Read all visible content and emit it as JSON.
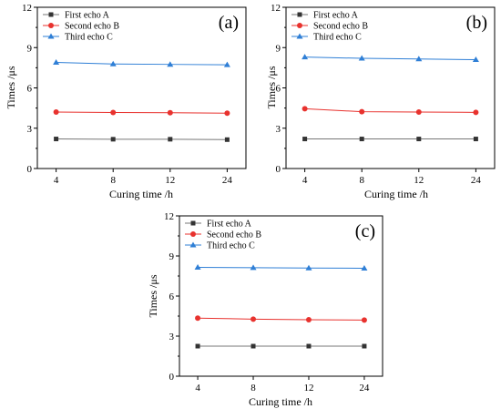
{
  "colors": {
    "series": [
      "#333333",
      "#e8322e",
      "#2f7fd6"
    ],
    "line": [
      "#777777",
      "#e8322e",
      "#2f7fd6"
    ]
  },
  "chart_data": [
    {
      "type": "line",
      "panel_label": "(a)",
      "categories": [
        "4",
        "8",
        "12",
        "24"
      ],
      "xlabel": "Curing time /h",
      "ylabel": "Times /μs",
      "ylim": [
        0,
        12
      ],
      "yticks": [
        "0",
        "3",
        "6",
        "9",
        "12"
      ],
      "legend_position": "top-left",
      "grid": false,
      "series": [
        {
          "name": "First echo A",
          "marker": "square",
          "values": [
            2.2,
            2.18,
            2.18,
            2.15
          ]
        },
        {
          "name": "Second echo B",
          "marker": "circle",
          "values": [
            4.2,
            4.17,
            4.15,
            4.12
          ]
        },
        {
          "name": "Third echo C",
          "marker": "triangle",
          "values": [
            7.9,
            7.78,
            7.75,
            7.72
          ]
        }
      ]
    },
    {
      "type": "line",
      "panel_label": "(b)",
      "categories": [
        "4",
        "8",
        "12",
        "24"
      ],
      "xlabel": "Curing time /h",
      "ylabel": "Times /μs",
      "ylim": [
        0,
        12
      ],
      "yticks": [
        "0",
        "3",
        "6",
        "9",
        "12"
      ],
      "legend_position": "top-left",
      "grid": false,
      "series": [
        {
          "name": "First echo A",
          "marker": "square",
          "values": [
            2.2,
            2.2,
            2.2,
            2.2
          ]
        },
        {
          "name": "Second echo B",
          "marker": "circle",
          "values": [
            4.45,
            4.23,
            4.2,
            4.18
          ]
        },
        {
          "name": "Third echo C",
          "marker": "triangle",
          "values": [
            8.3,
            8.2,
            8.15,
            8.1
          ]
        }
      ]
    },
    {
      "type": "line",
      "panel_label": "(c)",
      "categories": [
        "4",
        "8",
        "12",
        "24"
      ],
      "xlabel": "Curing time /h",
      "ylabel": "Times /μs",
      "ylim": [
        0,
        12
      ],
      "yticks": [
        "0",
        "3",
        "6",
        "9",
        "12"
      ],
      "legend_position": "top-left",
      "grid": false,
      "series": [
        {
          "name": "First echo A",
          "marker": "square",
          "values": [
            2.25,
            2.25,
            2.25,
            2.25
          ]
        },
        {
          "name": "Second echo B",
          "marker": "circle",
          "values": [
            4.35,
            4.27,
            4.23,
            4.2
          ]
        },
        {
          "name": "Third echo C",
          "marker": "triangle",
          "values": [
            8.15,
            8.12,
            8.1,
            8.08
          ]
        }
      ]
    }
  ]
}
